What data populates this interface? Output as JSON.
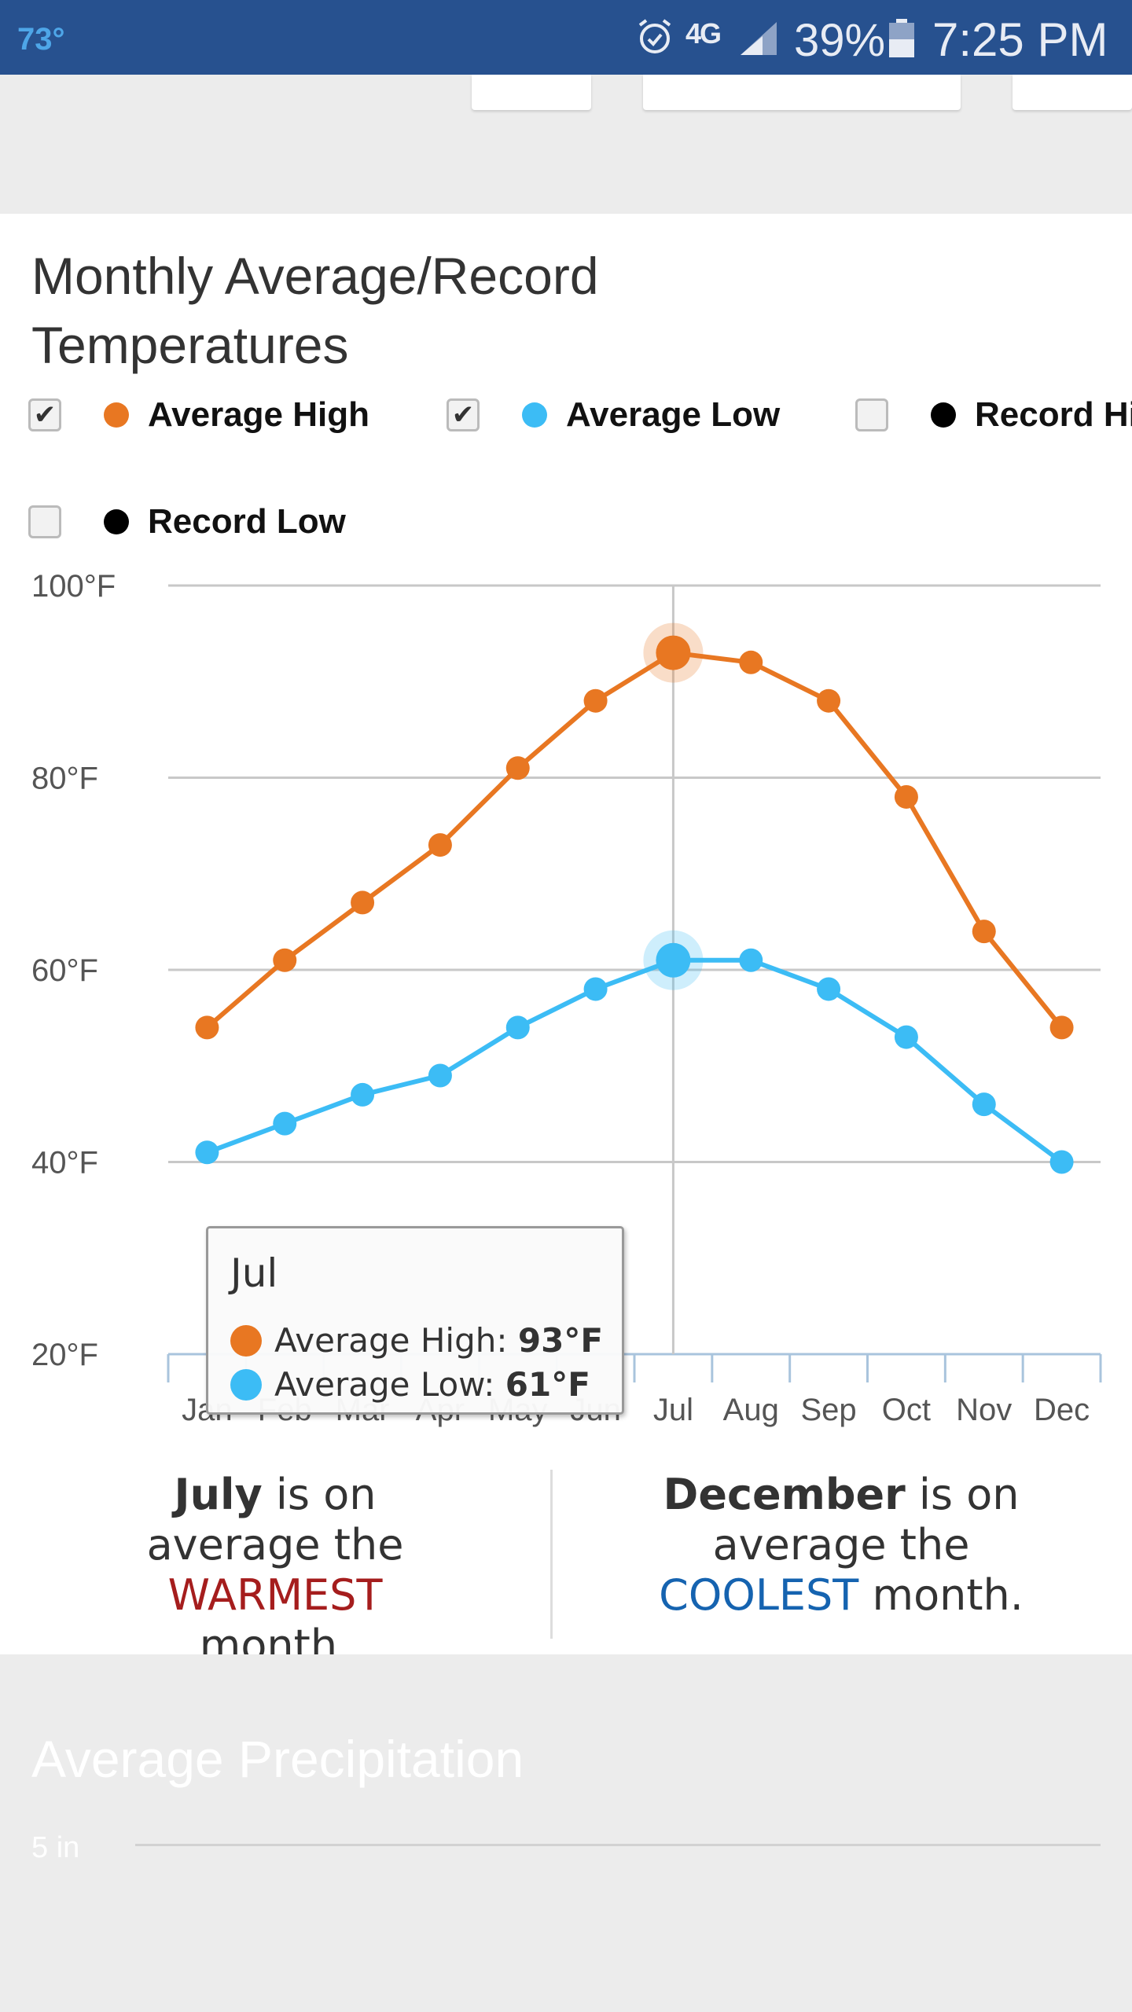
{
  "status_bar": {
    "temperature": "73°",
    "network": "4G",
    "battery": "39%",
    "time": "7:25 PM"
  },
  "chart_title": "Monthly Average/Record Temperatures",
  "legend": [
    {
      "label": "Average High",
      "checked": true,
      "check_mark": "✔",
      "color": "#e87722"
    },
    {
      "label": "Average Low",
      "checked": true,
      "check_mark": "✔",
      "color": "#3cbcf5"
    },
    {
      "label": "Record High",
      "checked": false,
      "check_mark": "",
      "color": "#000000"
    },
    {
      "label": "Record Low",
      "checked": false,
      "check_mark": "",
      "color": "#000000"
    }
  ],
  "tooltip": {
    "month": "Jul",
    "high_label": "Average High:",
    "high_value": "93°F",
    "low_label": "Average Low:",
    "low_value": "61°F"
  },
  "summary": {
    "warm_month": "July",
    "warm_pre": " is on average the ",
    "warm_word": "WARMEST",
    "warm_post": " month.",
    "cool_month": "December",
    "cool_pre": " is on average the ",
    "cool_word": "COOLEST",
    "cool_post": " month."
  },
  "precip": {
    "title": "Average Precipitation",
    "tick": "5 in"
  },
  "chart_data": {
    "type": "line",
    "title": "Monthly Average/Record Temperatures",
    "categories": [
      "Jan",
      "Feb",
      "Mar",
      "Apr",
      "May",
      "Jun",
      "Jul",
      "Aug",
      "Sep",
      "Oct",
      "Nov",
      "Dec"
    ],
    "series": [
      {
        "name": "Average High",
        "color": "#e87722",
        "values": [
          54,
          61,
          67,
          73,
          81,
          88,
          93,
          92,
          88,
          78,
          64,
          54
        ]
      },
      {
        "name": "Average Low",
        "color": "#3cbcf5",
        "values": [
          41,
          44,
          47,
          49,
          54,
          58,
          61,
          61,
          58,
          53,
          46,
          40
        ]
      }
    ],
    "y_ticks": [
      100,
      80,
      60,
      40,
      20
    ],
    "y_tick_suffix": "°F",
    "ylim": [
      20,
      100
    ],
    "highlight_category": "Jul",
    "grid": true,
    "xlabel": "",
    "ylabel": ""
  }
}
